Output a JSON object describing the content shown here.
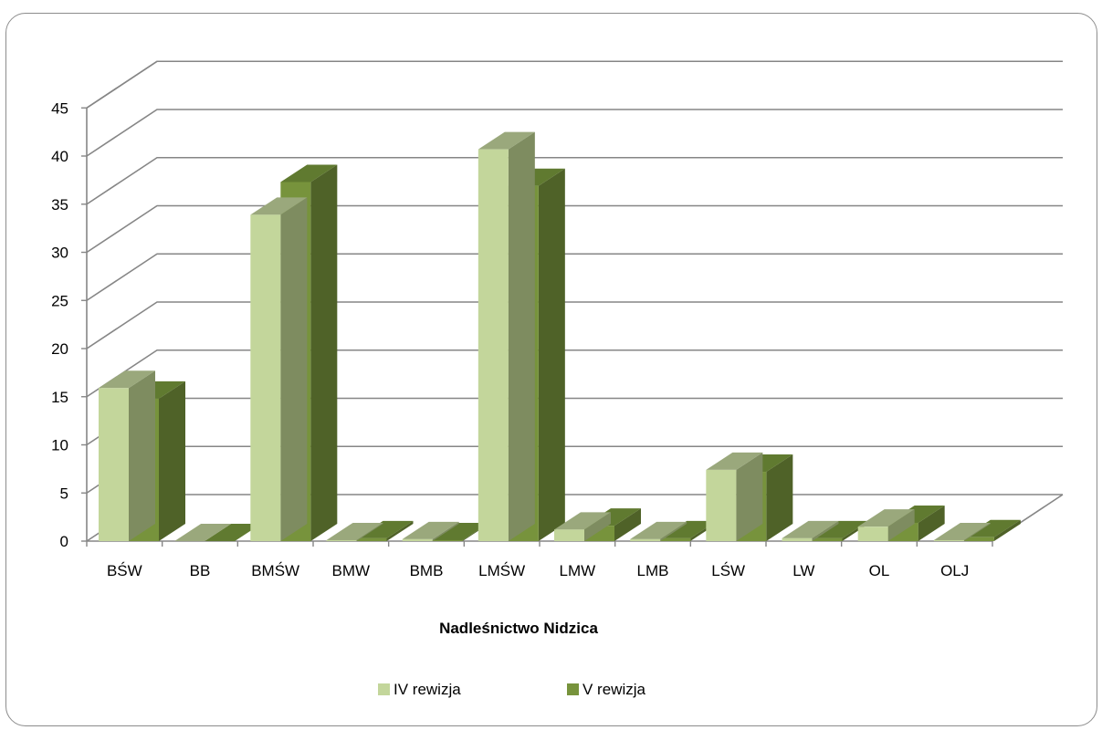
{
  "chart_data": {
    "type": "bar",
    "title": "Nadleśnictwo Nidzica",
    "categories": [
      "BŚW",
      "BB",
      "BMŚW",
      "BMW",
      "BMB",
      "LMŚW",
      "LMW",
      "LMB",
      "LŚW",
      "LW",
      "OL",
      "OLJ"
    ],
    "series": [
      {
        "name": "IV rewizja",
        "values": [
          15.9,
          0,
          33.9,
          0.1,
          0.2,
          40.7,
          1.2,
          0.2,
          7.4,
          0.3,
          1.5,
          0.1
        ]
      },
      {
        "name": "V rewizja",
        "values": [
          14.8,
          0,
          37.3,
          0.3,
          0.1,
          36.9,
          1.6,
          0.3,
          7.2,
          0.3,
          1.9,
          0.4
        ]
      }
    ],
    "ylim": [
      0,
      45
    ],
    "yticks": [
      0,
      5,
      10,
      15,
      20,
      25,
      30,
      35,
      40,
      45
    ],
    "grid": true,
    "style": "3d-clustered-column",
    "legend": "bottom"
  },
  "colors": {
    "series_front": [
      "#c3d69b",
      "#77933c"
    ],
    "series_side": [
      "#7e8c60",
      "#4f6228"
    ],
    "series_top": [
      "#9aa87c",
      "#607a30"
    ],
    "grid": "#868686",
    "axis": "#868686",
    "frame": "#8c8c8c"
  }
}
